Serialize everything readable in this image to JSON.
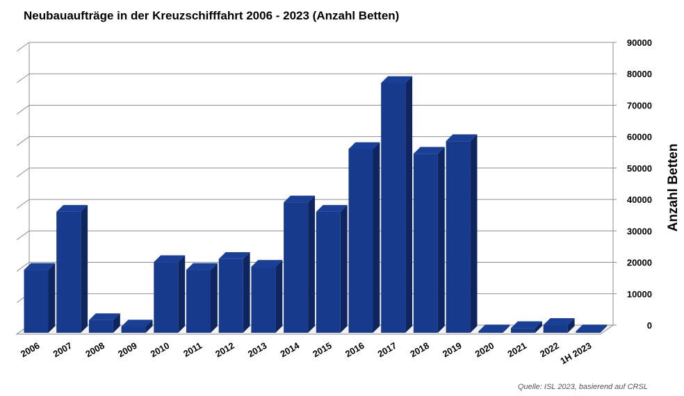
{
  "title": "Neubauaufträge in der Kreuzschifffahrt 2006 - 2023 (Anzahl Betten)",
  "source": "Quelle: ISL 2023, basierend auf CRSL",
  "chart_data": {
    "type": "bar",
    "title": "Neubauaufträge in der Kreuzschifffahrt 2006 - 2023 (Anzahl Betten)",
    "xlabel": "",
    "ylabel": "Anzahl Betten",
    "categories": [
      "2006",
      "2007",
      "2008",
      "2009",
      "2010",
      "2011",
      "2012",
      "2013",
      "2014",
      "2015",
      "2016",
      "2017",
      "2018",
      "2019",
      "2020",
      "2021",
      "2022",
      "1H 2023"
    ],
    "values": [
      20000,
      38500,
      4000,
      2000,
      22500,
      20000,
      23500,
      21000,
      41500,
      38500,
      58500,
      79500,
      57000,
      61000,
      0,
      1500,
      2500,
      0
    ],
    "ylim": [
      0,
      90000
    ],
    "yticks": [
      0,
      10000,
      20000,
      30000,
      40000,
      50000,
      60000,
      70000,
      80000,
      90000
    ],
    "y_axis_side": "right",
    "bar_color": "#173a8c",
    "grid": true,
    "style": "3d-column"
  }
}
